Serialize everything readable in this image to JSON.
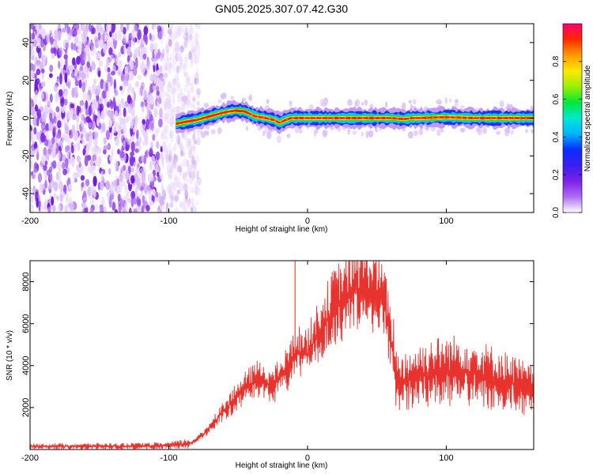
{
  "figure_title": "GN05.2025.307.07.42.G30",
  "colors": {
    "snr_line": "#e8322e",
    "spectrogram_ridge": "#ff1a1a",
    "noise": "#7b22e6",
    "axis": "#000000"
  },
  "chart_data": [
    {
      "type": "heatmap",
      "title": "GN05.2025.307.07.42.G30",
      "xlabel": "Height of straight line (km)",
      "ylabel": "Frequency (Hz)",
      "xlim": [
        -200,
        163
      ],
      "ylim": [
        -50,
        50
      ],
      "x_ticks": [
        -200,
        -100,
        0,
        100
      ],
      "y_ticks": [
        -40,
        -20,
        0,
        20,
        40
      ],
      "noise_region_x": [
        -200,
        -78
      ],
      "signal_start_x": -95,
      "ridge_path": {
        "x": [
          -95,
          -88,
          -80,
          -70,
          -60,
          -52,
          -45,
          -38,
          -30,
          -24,
          -20,
          -16,
          -12,
          -6,
          0,
          20,
          40,
          60,
          70,
          75,
          80,
          100,
          120,
          140,
          163
        ],
        "y": [
          -3,
          -2,
          -1,
          1,
          3,
          4,
          3.5,
          1,
          0,
          -1,
          -2.5,
          -1,
          0,
          0,
          0,
          0,
          0,
          0,
          -0.5,
          0,
          0,
          0.5,
          0,
          0,
          0
        ]
      },
      "colorbar": {
        "label": "Normalized spectral amplitude",
        "range": [
          0,
          1
        ],
        "ticks": [
          "0.0",
          "0.2",
          "0.4",
          "0.6",
          "0.8"
        ],
        "colormap": [
          "#ffffff",
          "#b06cf0",
          "#7b22e6",
          "#3a1ff0",
          "#0b2dff",
          "#00b4ff",
          "#00e8d0",
          "#00e83a",
          "#9bef00",
          "#ffe800",
          "#ff9a00",
          "#ff2a00",
          "#ff0070"
        ]
      }
    },
    {
      "type": "line",
      "xlabel": "Height of straight line (km)",
      "ylabel": "SNR (10 * v/v)",
      "xlim": [
        -200,
        163
      ],
      "ylim": [
        0,
        9000
      ],
      "x_ticks": [
        -200,
        -100,
        0,
        100
      ],
      "y_ticks": [
        2000,
        4000,
        6000,
        8000
      ],
      "series": [
        {
          "name": "SNR",
          "envelope": {
            "x": [
              -200,
              -120,
              -100,
              -85,
              -75,
              -65,
              -55,
              -45,
              -35,
              -25,
              -15,
              -8,
              0,
              10,
              20,
              30,
              40,
              48,
              55,
              60,
              65,
              75,
              90,
              110,
              130,
              150,
              163
            ],
            "y": [
              150,
              160,
              180,
              280,
              700,
              1500,
              2200,
              2900,
              3400,
              3000,
              3800,
              4600,
              4600,
              5800,
              6900,
              7400,
              7700,
              7600,
              7000,
              5300,
              3200,
              3400,
              3700,
              3800,
              3500,
              3100,
              2700
            ]
          },
          "spike": {
            "x": -9,
            "y": 9000
          }
        }
      ]
    }
  ]
}
